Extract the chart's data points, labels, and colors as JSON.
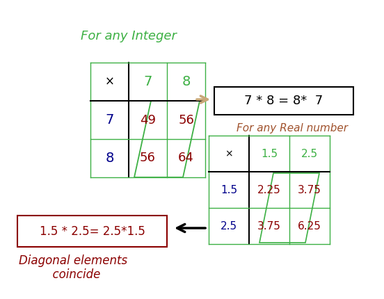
{
  "title_integer": "For any Integer",
  "title_real": "For any Real number",
  "box_text_integer": "7 * 8 = 8*  7",
  "box_text_real": "1.5 * 2.5= 2.5*1.5",
  "bottom_text_1": "Diagonal elements",
  "bottom_text_2": "  coincide",
  "color_green": "#3CB043",
  "color_blue": "#00008B",
  "color_dark_red": "#8B0000",
  "color_brown": "#A0522D",
  "color_black": "#000000",
  "color_arrow_tan": "#C8A878"
}
